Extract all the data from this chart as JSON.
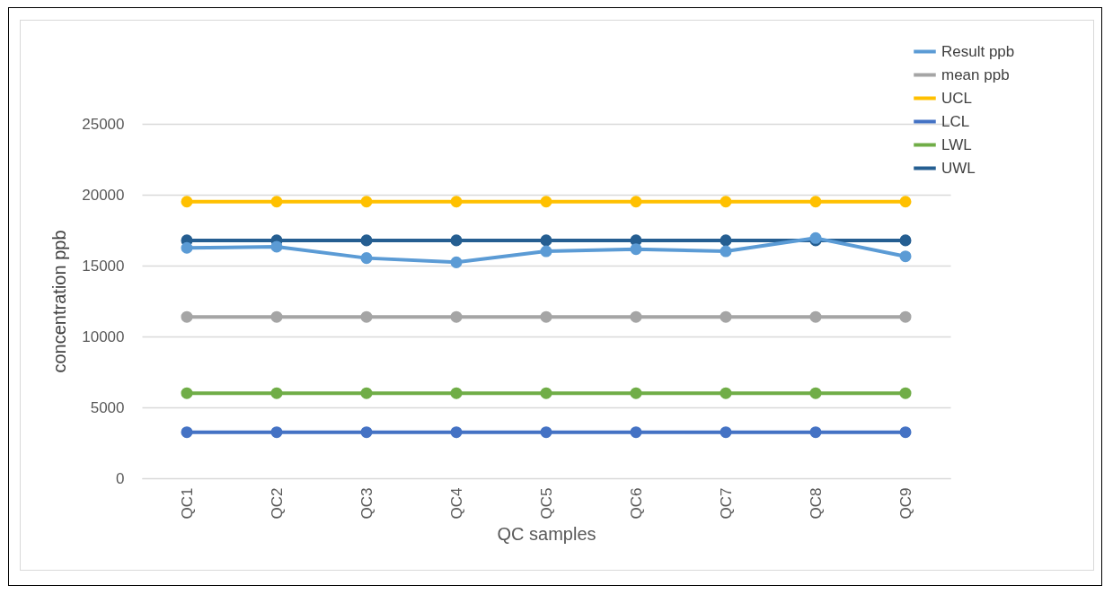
{
  "chart_data": {
    "type": "line",
    "xlabel": "QC samples",
    "ylabel": "concentration ppb",
    "categories": [
      "QC1",
      "QC2",
      "QC3",
      "QC4",
      "QC5",
      "QC6",
      "QC7",
      "QC8",
      "QC9"
    ],
    "series": [
      {
        "name": "Result ppb",
        "color": "#5b9bd5",
        "values": [
          16250,
          16330,
          15530,
          15230,
          16010,
          16160,
          16010,
          16940,
          15650
        ]
      },
      {
        "name": " mean ppb",
        "color": "#a5a5a5",
        "values": [
          11380,
          11380,
          11380,
          11380,
          11380,
          11380,
          11380,
          11380,
          11380
        ]
      },
      {
        "name": "UCL",
        "color": "#ffc000",
        "values": [
          19510,
          19510,
          19510,
          19510,
          19510,
          19510,
          19510,
          19510,
          19510
        ]
      },
      {
        "name": "LCL",
        "color": "#4472c4",
        "values": [
          3250,
          3250,
          3250,
          3250,
          3250,
          3250,
          3250,
          3250,
          3250
        ]
      },
      {
        "name": "LWL",
        "color": "#70ad47",
        "values": [
          6000,
          6000,
          6000,
          6000,
          6000,
          6000,
          6000,
          6000,
          6000
        ]
      },
      {
        "name": "UWL",
        "color": "#255e91",
        "values": [
          16780,
          16780,
          16780,
          16780,
          16780,
          16780,
          16780,
          16780,
          16780
        ]
      }
    ],
    "ylim": [
      0,
      25000
    ],
    "yticks": [
      0,
      5000,
      10000,
      15000,
      20000,
      25000
    ],
    "grid": "y",
    "legend": "top right",
    "marker": "circle",
    "line_style": "solid"
  }
}
